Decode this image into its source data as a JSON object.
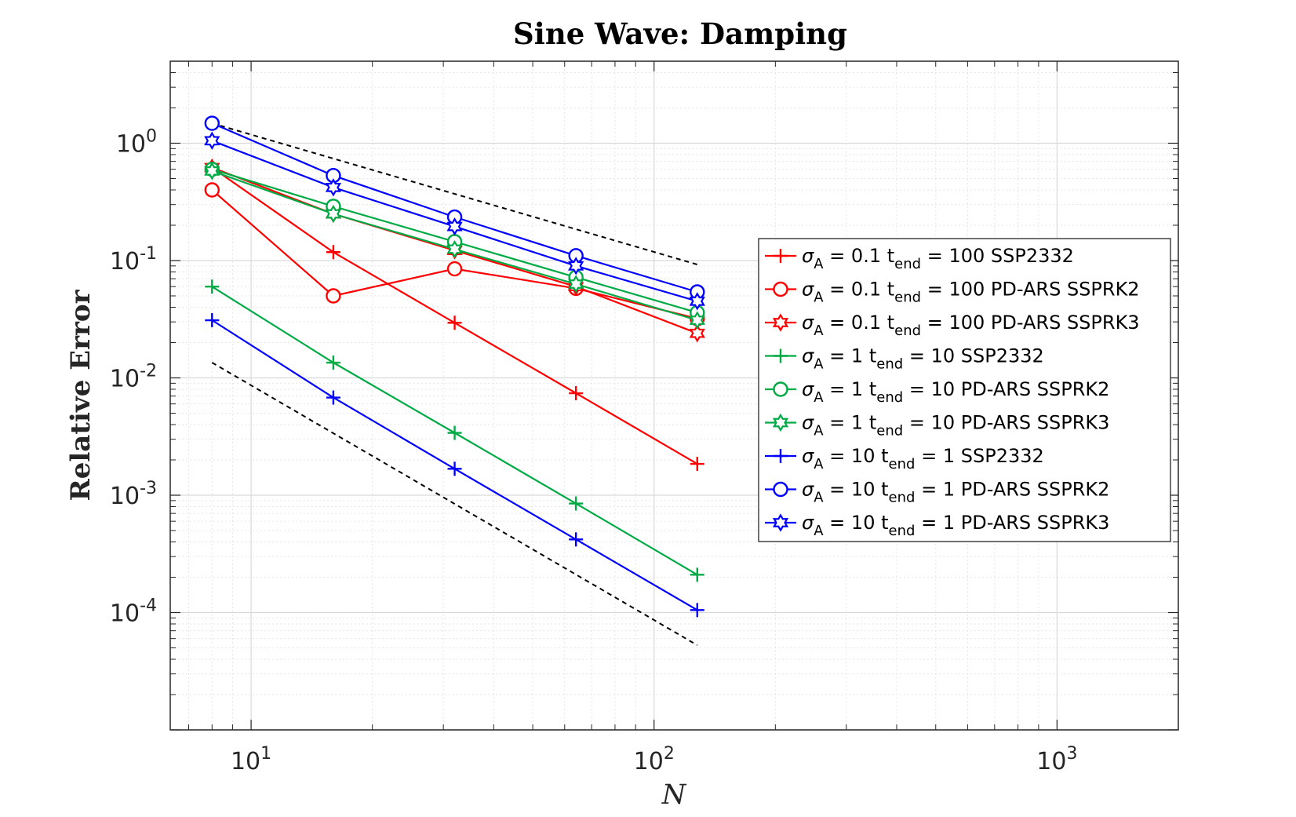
{
  "chart_data": {
    "type": "line",
    "title": "Sine Wave: Damping",
    "xlabel": "N",
    "ylabel": "Relative Error",
    "xscale": "log",
    "yscale": "log",
    "xlim": [
      6.3,
      2000
    ],
    "ylim": [
      1e-05,
      5
    ],
    "grid": true,
    "legend_position": "right",
    "x_ticks": [
      {
        "value": 10,
        "base": "10",
        "exp": "1"
      },
      {
        "value": 100,
        "base": "10",
        "exp": "2"
      },
      {
        "value": 1000,
        "base": "10",
        "exp": "3"
      }
    ],
    "y_ticks": [
      {
        "value": 1,
        "base": "10",
        "exp": "0"
      },
      {
        "value": 0.1,
        "base": "10",
        "exp": "-1"
      },
      {
        "value": 0.01,
        "base": "10",
        "exp": "-2"
      },
      {
        "value": 0.001,
        "base": "10",
        "exp": "-3"
      },
      {
        "value": 0.0001,
        "base": "10",
        "exp": "-4"
      }
    ],
    "x": [
      8,
      16,
      32,
      64,
      128
    ],
    "series": [
      {
        "name": "σA = 0.1 tend = 100 SSP2332",
        "sigma": "0.1",
        "tend": "100",
        "method": "SSP2332",
        "sep1": " ",
        "sep2": " ",
        "color": "#ff0000",
        "marker": "plus",
        "values": [
          0.62,
          0.118,
          0.0295,
          0.0074,
          0.00185
        ]
      },
      {
        "name": "σA = 0.1 tend = 100 PD-ARS SSPRK2",
        "sigma": "0.1",
        "tend": "100",
        "method": "PD-ARS SSPRK2",
        "sep1": " ",
        "sep2": " ",
        "color": "#ff0000",
        "marker": "circle",
        "values": [
          0.4,
          0.05,
          0.085,
          0.058,
          0.032
        ]
      },
      {
        "name": "σA = 0.1 tend = 100 PD-ARS SSPRK3",
        "sigma": "0.1",
        "tend": "100",
        "method": "PD-ARS SSPRK3",
        "sep1": " ",
        "sep2": " ",
        "color": "#ff0000",
        "marker": "hexagram",
        "values": [
          0.62,
          0.25,
          0.122,
          0.06,
          0.024
        ]
      },
      {
        "name": "σA = 1 tend = 10 SSP2332",
        "sigma": "1",
        "tend": "10",
        "method": "SSP2332",
        "sep1": "   ",
        "sep2": "   ",
        "color": "#00aa44",
        "marker": "plus",
        "values": [
          0.06,
          0.0135,
          0.0034,
          0.00085,
          0.00021
        ]
      },
      {
        "name": "σA = 1 tend = 10 PD-ARS SSPRK2",
        "sigma": "1",
        "tend": "10",
        "method": "PD-ARS SSPRK2",
        "sep1": "   ",
        "sep2": "   ",
        "color": "#00aa44",
        "marker": "circle",
        "values": [
          0.6,
          0.29,
          0.145,
          0.072,
          0.036
        ]
      },
      {
        "name": "σA = 1 tend = 10 PD-ARS SSPRK3",
        "sigma": "1",
        "tend": "10",
        "method": "PD-ARS SSPRK3",
        "sep1": "   ",
        "sep2": "   ",
        "color": "#00aa44",
        "marker": "hexagram",
        "values": [
          0.58,
          0.25,
          0.125,
          0.063,
          0.031
        ]
      },
      {
        "name": "σA = 10 tend = 1 SSP2332",
        "sigma": "10",
        "tend": "1",
        "method": "SSP2332",
        "sep1": "  ",
        "sep2": "    ",
        "color": "#0000ff",
        "marker": "plus",
        "values": [
          0.031,
          0.0068,
          0.00168,
          0.00042,
          0.000105
        ]
      },
      {
        "name": "σA = 10 tend = 1 PD-ARS SSPRK2",
        "sigma": "10",
        "tend": "1",
        "method": "PD-ARS SSPRK2",
        "sep1": "  ",
        "sep2": "    ",
        "color": "#0000ff",
        "marker": "circle",
        "values": [
          1.48,
          0.53,
          0.235,
          0.11,
          0.054
        ]
      },
      {
        "name": "σA = 10 tend = 1 PD-ARS SSPRK3",
        "sigma": "10",
        "tend": "1",
        "method": "PD-ARS SSPRK3",
        "sep1": "  ",
        "sep2": "    ",
        "color": "#0000ff",
        "marker": "hexagram",
        "values": [
          1.05,
          0.42,
          0.195,
          0.09,
          0.045
        ]
      }
    ],
    "reference_lines": [
      {
        "name": "first-order-reference",
        "order": 1,
        "x": [
          8,
          128
        ],
        "values": [
          1.48,
          0.0925
        ],
        "color": "#000000",
        "style": "dashed"
      },
      {
        "name": "second-order-reference",
        "order": 2,
        "x": [
          8,
          128
        ],
        "values": [
          0.0135,
          5.27e-05
        ],
        "color": "#000000",
        "style": "dashed"
      }
    ]
  }
}
